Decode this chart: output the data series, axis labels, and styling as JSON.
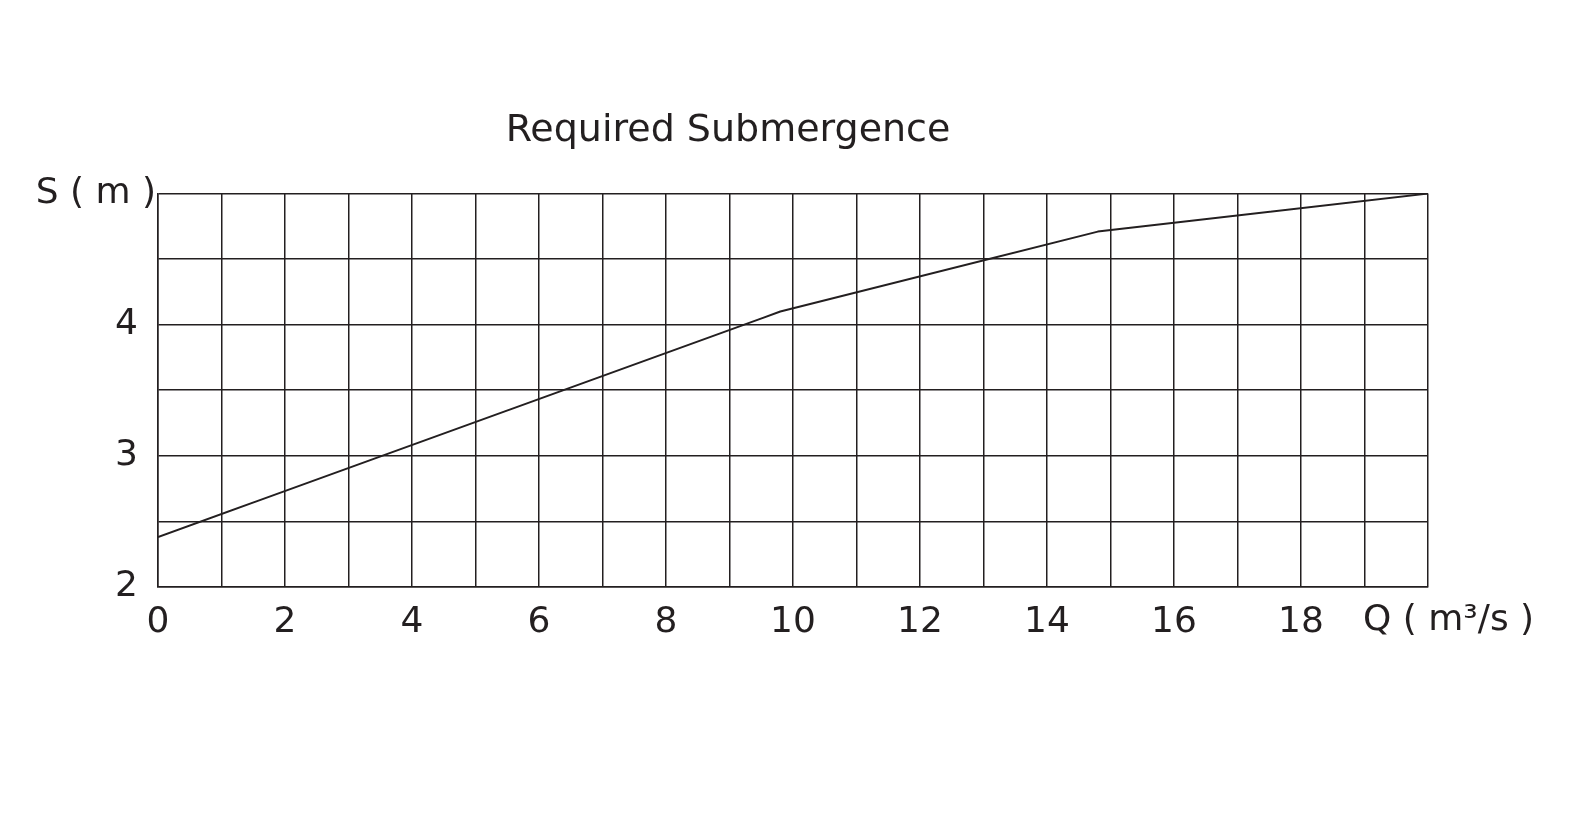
{
  "chart_data": {
    "type": "line",
    "title": "Required Submergence",
    "xlabel": "Q ( m³/s )",
    "ylabel": "S ( m )",
    "x": [
      0,
      9.8,
      14.8,
      20
    ],
    "series": [
      {
        "color": "#231f20",
        "values": [
          2.38,
          4.1,
          4.71,
          5
        ]
      }
    ],
    "xlim": [
      0,
      20
    ],
    "ylim": [
      2,
      5
    ],
    "xticks": [
      0,
      {
        "value": 1,
        "label": null
      },
      2,
      {
        "value": 3,
        "label": null
      },
      4,
      {
        "value": 5,
        "label": null
      },
      6,
      {
        "value": 7,
        "label": null
      },
      8,
      {
        "value": 9,
        "label": null
      },
      10,
      {
        "value": 11,
        "label": null
      },
      12,
      {
        "value": 13,
        "label": null
      },
      14,
      {
        "value": 15,
        "label": null
      },
      16,
      {
        "value": 17,
        "label": null
      },
      18,
      {
        "value": 19,
        "label": null
      },
      {
        "value": 20,
        "label": null
      }
    ],
    "yticks": [
      2,
      {
        "value": 2.5,
        "label": null
      },
      3,
      {
        "value": 3.5,
        "label": null
      },
      4,
      {
        "value": 4.5,
        "label": null
      },
      {
        "value": 5,
        "label": null
      }
    ],
    "grid": true,
    "legend": false,
    "marker": "none",
    "line_style": "solid"
  }
}
